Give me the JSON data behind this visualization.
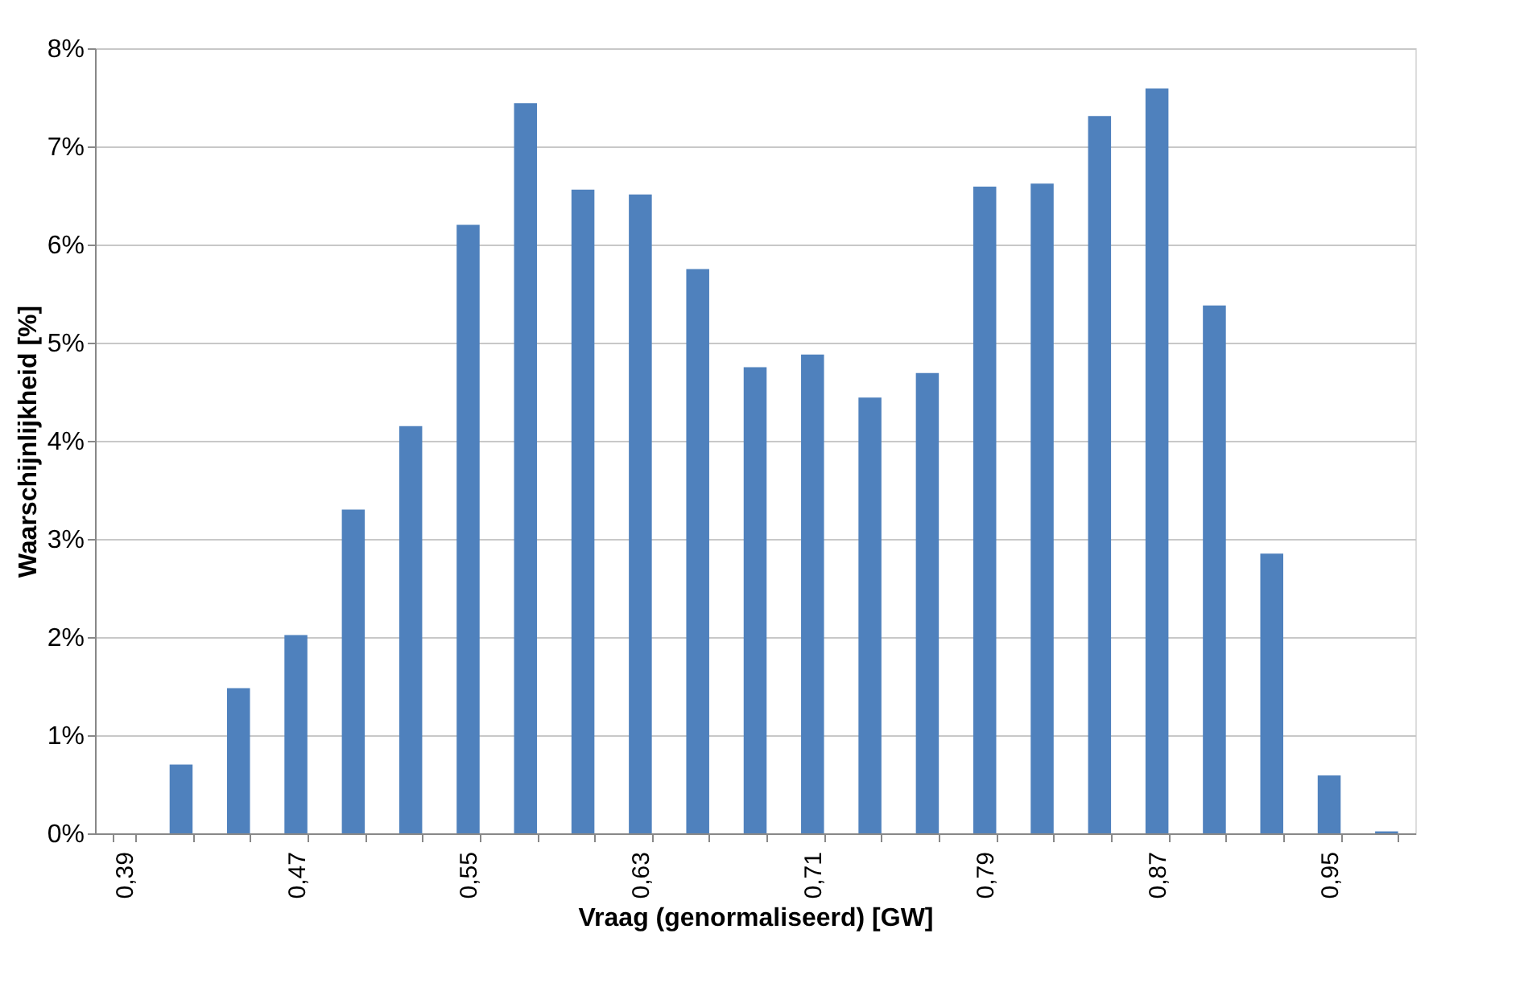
{
  "chart_data": {
    "type": "bar",
    "xlabel": "Vraag (genormaliseerd) [GW]",
    "ylabel": "Waarschijnlijkheid [%]",
    "categories": [
      "0,39",
      null,
      null,
      "0,47",
      null,
      null,
      "0,55",
      null,
      null,
      "0,63",
      null,
      null,
      "0,71",
      null,
      null,
      "0,79",
      null,
      null,
      "0,87",
      null,
      null,
      "0,95",
      null
    ],
    "series": [
      {
        "color": "#4f81bd",
        "values": [
          0,
          0.7,
          1.48,
          2.02,
          3.3,
          4.15,
          6.2,
          7.44,
          6.56,
          6.51,
          5.75,
          4.75,
          4.88,
          4.44,
          4.69,
          6.59,
          6.62,
          7.31,
          7.59,
          5.38,
          2.85,
          0.59,
          0.02
        ]
      }
    ],
    "ylim": [
      0,
      8
    ],
    "yticks": [
      {
        "value": 0,
        "label": "0%"
      },
      {
        "value": 1,
        "label": "1%"
      },
      {
        "value": 2,
        "label": "2%"
      },
      {
        "value": 3,
        "label": "3%"
      },
      {
        "value": 4,
        "label": "4%"
      },
      {
        "value": 5,
        "label": "5%"
      },
      {
        "value": 6,
        "label": "6%"
      },
      {
        "value": 7,
        "label": "7%"
      },
      {
        "value": 8,
        "label": "8%"
      }
    ],
    "grid": "y"
  }
}
